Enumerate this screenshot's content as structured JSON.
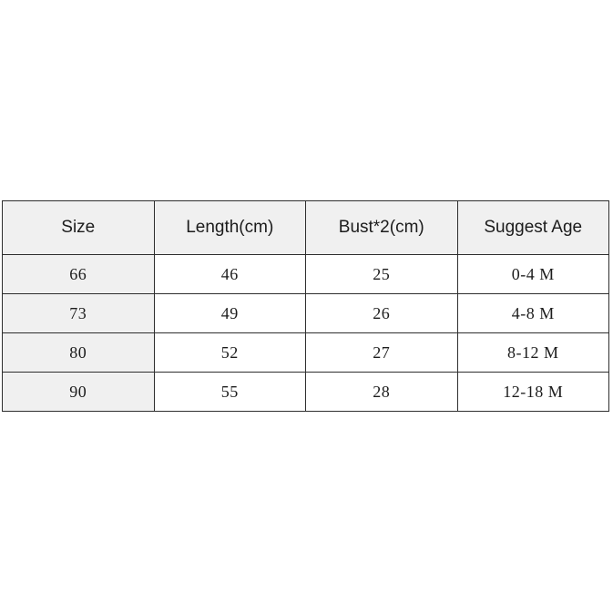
{
  "chart_data": {
    "type": "table",
    "title": "",
    "columns": [
      "Size",
      "Length(cm)",
      "Bust*2(cm)",
      "Suggest Age"
    ],
    "rows": [
      [
        "66",
        "46",
        "25",
        "0-4 M"
      ],
      [
        "73",
        "49",
        "26",
        "4-8 M"
      ],
      [
        "80",
        "52",
        "27",
        "8-12 M"
      ],
      [
        "90",
        "55",
        "28",
        "12-18 M"
      ]
    ],
    "layout": {
      "header_shaded": true,
      "first_column_shaded": true,
      "grid": "full"
    }
  },
  "colors": {
    "header_bg": "#f0f0f0",
    "row_label_bg": "#f0f0f0",
    "border": "#2e2e2e",
    "text": "#1c1c1c",
    "page_bg": "#ffffff"
  }
}
